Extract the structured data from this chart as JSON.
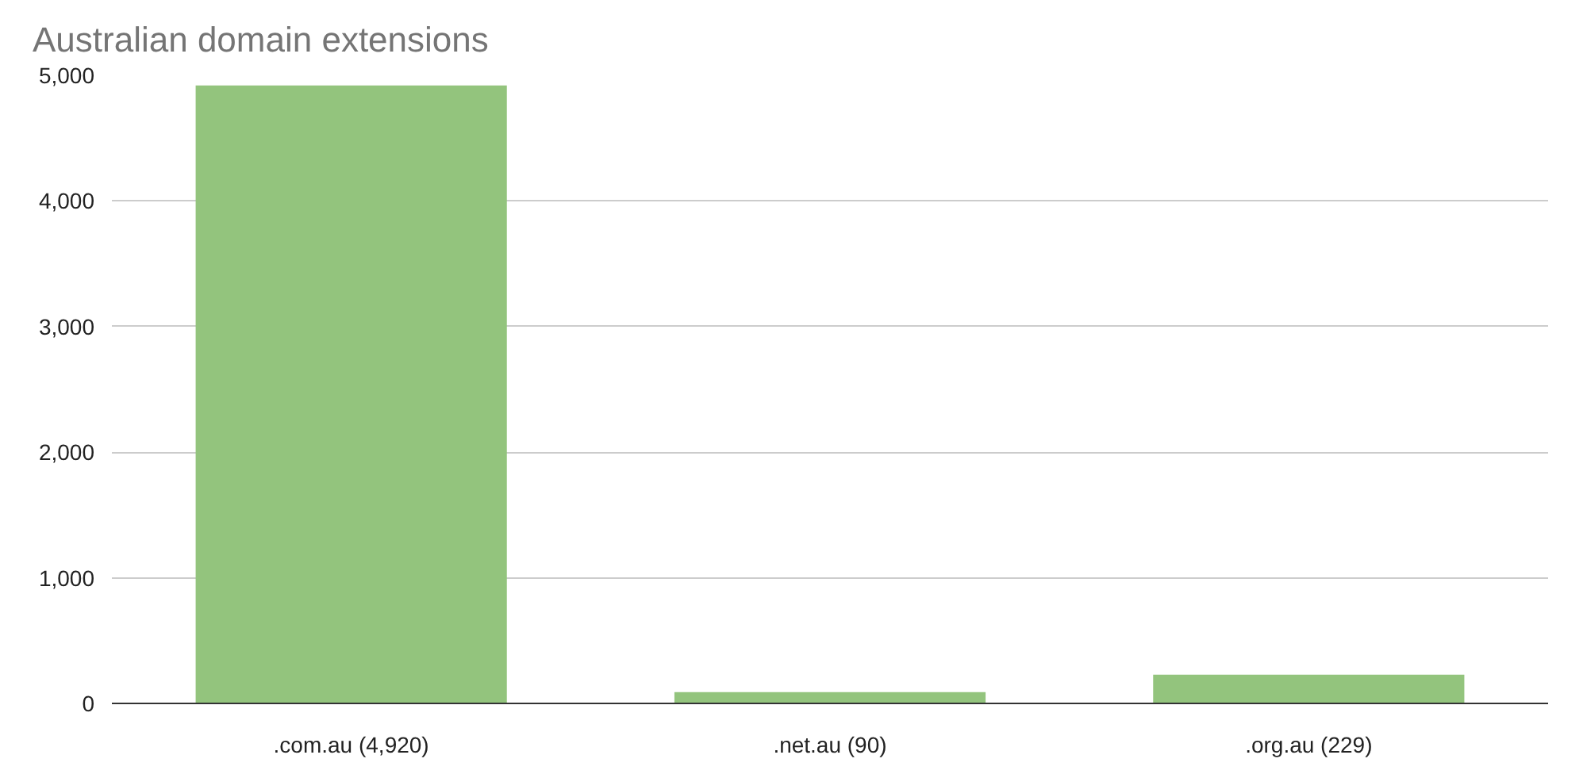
{
  "chart_data": {
    "type": "bar",
    "title": "Australian domain extensions",
    "categories": [
      ".com.au (4,920)",
      ".net.au (90)",
      ".org.au (229)"
    ],
    "values": [
      4920,
      90,
      229
    ],
    "color": "#93c47d",
    "ylim": [
      0,
      5000
    ],
    "yticks": [
      {
        "value": 0,
        "label": "0"
      },
      {
        "value": 1000,
        "label": "1,000"
      },
      {
        "value": 2000,
        "label": "2,000"
      },
      {
        "value": 3000,
        "label": "3,000"
      },
      {
        "value": 4000,
        "label": "4,000"
      },
      {
        "value": 5000,
        "label": "5,000"
      }
    ],
    "grid": "y"
  }
}
